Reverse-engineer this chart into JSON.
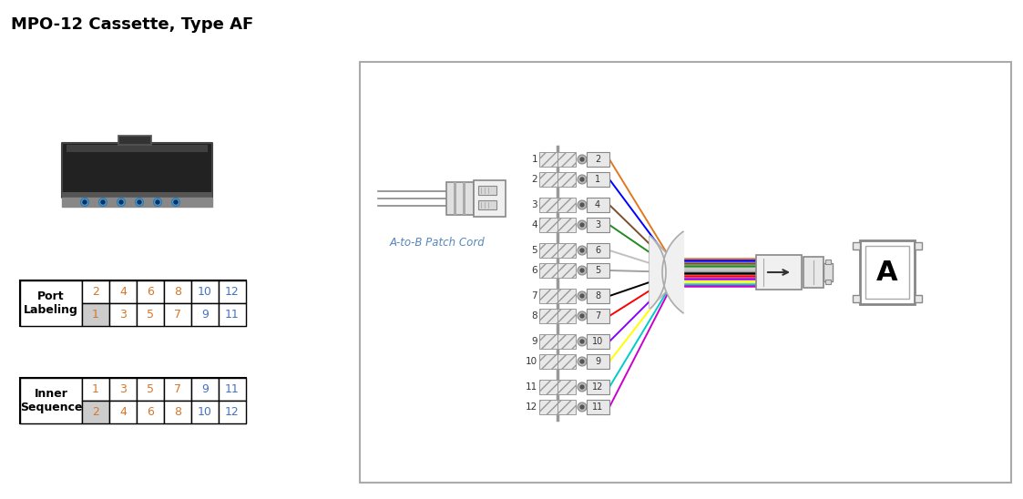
{
  "title": "MPO-12 Cassette, Type AF",
  "patch_cord_label": "A-to-B Patch Cord",
  "mpo_label": "A",
  "port_labeling_label": "Port\nLabeling",
  "inner_sequence_label": "Inner\nSequence",
  "port_labeling_row1": [
    "2",
    "4",
    "6",
    "8",
    "10",
    "12"
  ],
  "port_labeling_row2": [
    "1",
    "3",
    "5",
    "7",
    "9",
    "11"
  ],
  "inner_seq_row1": [
    "1",
    "3",
    "5",
    "7",
    "9",
    "11"
  ],
  "inner_seq_row2": [
    "2",
    "4",
    "6",
    "8",
    "10",
    "12"
  ],
  "port_labeling_row1_colors": [
    "#d4772c",
    "#d4772c",
    "#d4772c",
    "#d4772c",
    "#4472c4",
    "#4472c4"
  ],
  "port_labeling_row2_colors": [
    "#d4772c",
    "#d4772c",
    "#d4772c",
    "#d4772c",
    "#4472c4",
    "#4472c4"
  ],
  "inner_seq_row1_colors": [
    "#d4772c",
    "#d4772c",
    "#d4772c",
    "#d4772c",
    "#4472c4",
    "#4472c4"
  ],
  "inner_seq_row2_colors": [
    "#d4772c",
    "#d4772c",
    "#d4772c",
    "#d4772c",
    "#4472c4",
    "#4472c4"
  ],
  "port_labeling_row2_shaded": [
    0
  ],
  "inner_seq_row2_shaded": [
    0
  ],
  "fiber_colors": [
    "#e07820",
    "#0000ff",
    "#7b4f2e",
    "#228B22",
    "#c0c0c0",
    "#a0a0a0",
    "#000000",
    "#ff0000",
    "#8B00FF",
    "#ffff00",
    "#00cccc",
    "#cc00cc"
  ],
  "lc_port_numbers": [
    "2",
    "1",
    "4",
    "3",
    "6",
    "5",
    "8",
    "7",
    "10",
    "9",
    "12",
    "11"
  ],
  "mpo_row_numbers": [
    "1",
    "2",
    "3",
    "4",
    "5",
    "6",
    "7",
    "8",
    "9",
    "10",
    "11",
    "12"
  ],
  "bundle_colors": [
    "#e07820",
    "#0000ff",
    "#7b4f2e",
    "#228B22",
    "#c0c0c0",
    "#a0a0a0",
    "#000000",
    "#ff0000",
    "#8B00FF",
    "#ffff00",
    "#00cccc",
    "#cc00cc"
  ]
}
